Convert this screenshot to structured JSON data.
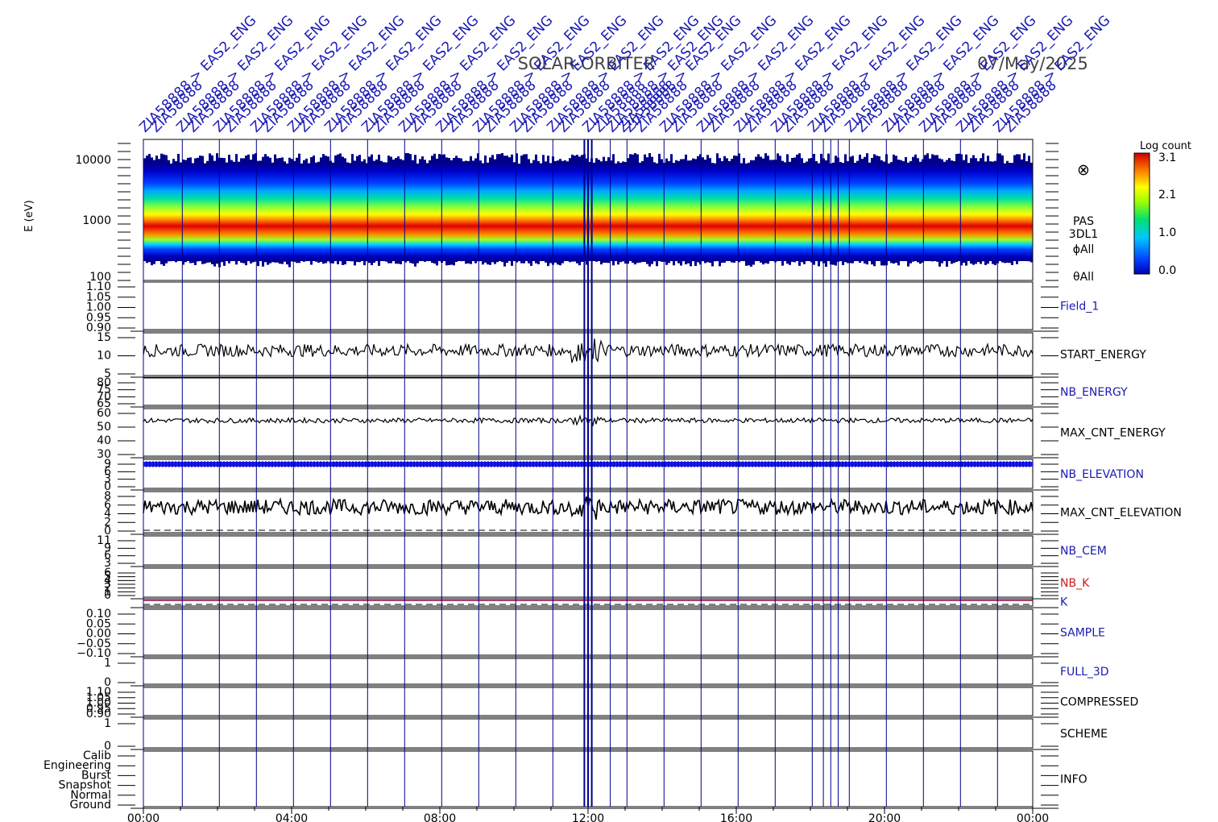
{
  "header": {
    "mission": "SOLAR-ORBITER",
    "date": "07/May/2025",
    "event_label": "ZIA58888 > EAS2_ENG",
    "event_label_alt": "ZIA58888"
  },
  "colorbar": {
    "title": "Log count",
    "ticks": [
      "3.1",
      "2.1",
      "1.0",
      "0.0"
    ],
    "range": [
      0.0,
      3.1
    ]
  },
  "spectrogram": {
    "ylabel": "E (eV)",
    "ytick_labels": [
      "10000",
      "1000",
      "100"
    ],
    "instrument_labels": [
      "PAS",
      "3DL1",
      "ϕAll",
      "θAll"
    ],
    "symbol": "⊗"
  },
  "colors": {
    "frame": "#000000",
    "event_lines": "#00008b",
    "label_blue": "#1a1ab4",
    "label_red": "#c81e1e",
    "trace": "#000000",
    "k_line": "#8b0040"
  },
  "chart_data": {
    "type": "line",
    "title": "SOLAR-ORBITER",
    "xaxis": {
      "range": [
        "00:00",
        "24:00"
      ],
      "tick_labels": [
        "00:00",
        "04:00",
        "08:00",
        "12:00",
        "16:00",
        "20:00",
        "00:00"
      ]
    },
    "event_times_hours": [
      0.0,
      1.05,
      2.05,
      3.05,
      4.05,
      5.05,
      6.05,
      7.05,
      8.05,
      9.05,
      10.05,
      11.05,
      11.9,
      12.0,
      12.1,
      12.6,
      13.05,
      14.05,
      15.05,
      16.05,
      17.05,
      18.05,
      18.35,
      18.55,
      18.75,
      19.05,
      20.05,
      21.05,
      22.05,
      23.05
    ],
    "spectrogram": {
      "energy_range_ev": [
        100,
        20000
      ],
      "peak_energy_ev": 1000,
      "color_range": [
        0.0,
        3.1
      ]
    },
    "panels": [
      {
        "label": "Field_1",
        "label_color": "blue",
        "tick_labels": [
          "1.10",
          "1.05",
          "1.00",
          "0.95",
          "0.90"
        ],
        "ylim": [
          0.9,
          1.1
        ]
      },
      {
        "label": "START_ENERGY",
        "label_color": "black",
        "tick_labels": [
          "15",
          "10",
          "5"
        ],
        "ylim": [
          0,
          17
        ],
        "series": {
          "name": "START_ENERGY",
          "mean": 10,
          "spread": 2.5
        }
      },
      {
        "label": "NB_ENERGY",
        "label_color": "blue",
        "tick_labels": [
          "80",
          "75",
          "70",
          "65"
        ],
        "ylim": [
          63,
          80
        ]
      },
      {
        "label": "MAX_CNT_ENERGY",
        "label_color": "black",
        "tick_labels": [
          "60",
          "50",
          "40",
          "30"
        ],
        "ylim": [
          22,
          62
        ],
        "series": {
          "name": "MAX_CNT_ENERGY",
          "mean": 52,
          "spread": 2
        }
      },
      {
        "label": "NB_ELEVATION",
        "label_color": "blue",
        "tick_labels": [
          "9",
          "6",
          "3",
          "0"
        ],
        "ylim": [
          0,
          9
        ],
        "series": {
          "name": "NB_ELEVATION",
          "value": 9
        }
      },
      {
        "label": "MAX_CNT_ELEVATION",
        "label_color": "black",
        "tick_labels": [
          "8",
          "6",
          "4",
          "2",
          "0"
        ],
        "ylim": [
          0,
          8
        ],
        "series": {
          "name": "MAX_CNT_ELEVATION",
          "mean": 5,
          "spread": 1.5
        }
      },
      {
        "label": "NB_CEM",
        "label_color": "blue",
        "tick_labels": [
          "11",
          "9",
          "6",
          "3"
        ],
        "ylim": [
          0,
          11
        ]
      },
      {
        "label": "NB_K",
        "label_color": "red",
        "tick_labels": [
          "6",
          "5",
          "4",
          "3",
          "2",
          "1",
          "0"
        ],
        "ylim": [
          0,
          6
        ]
      },
      {
        "label": "K",
        "label_color": "blue",
        "tick_labels": [],
        "ylim": [
          0,
          1
        ],
        "series": {
          "name": "K",
          "value": 1
        }
      },
      {
        "label": "SAMPLE",
        "label_color": "blue",
        "tick_labels": [
          "0.10",
          "0.05",
          "0.00",
          "−0.05",
          "−0.10"
        ],
        "ylim": [
          -0.1,
          0.1
        ]
      },
      {
        "label": "FULL_3D",
        "label_color": "blue",
        "tick_labels": [
          "1",
          "0"
        ],
        "ylim": [
          0,
          1
        ]
      },
      {
        "label": "COMPRESSED",
        "label_color": "black",
        "tick_labels": [
          "1.10",
          "1.05",
          "1.00",
          "0.95",
          "0.90"
        ],
        "ylim": [
          0.9,
          1.1
        ]
      },
      {
        "label": "SCHEME",
        "label_color": "black",
        "tick_labels": [
          "1",
          "0"
        ],
        "ylim": [
          0,
          1
        ]
      },
      {
        "label": "INFO",
        "label_color": "black",
        "tick_labels": [
          "Calib",
          "Engineering",
          "Burst",
          "Snapshot",
          "Normal",
          "Ground"
        ],
        "ylim": [
          0,
          5
        ]
      }
    ]
  }
}
